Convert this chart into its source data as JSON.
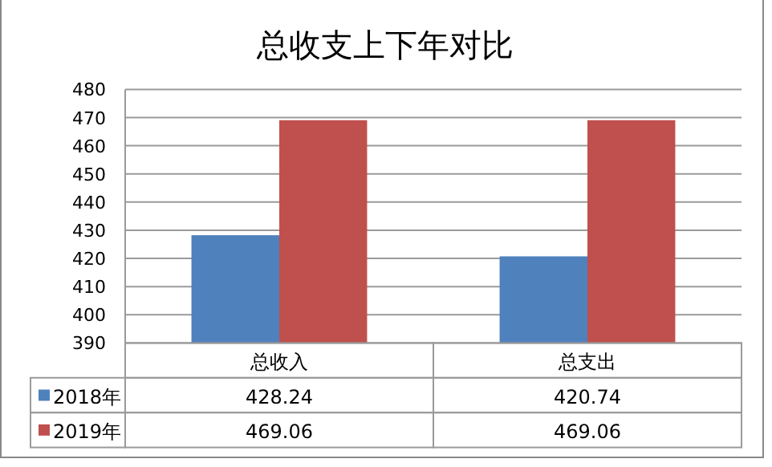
{
  "chart_data": {
    "type": "bar",
    "title": "总收支上下年对比",
    "categories": [
      "总收入",
      "总支出"
    ],
    "series": [
      {
        "name": "2018年",
        "color": "#4f81bd",
        "values": [
          428.24,
          420.74
        ]
      },
      {
        "name": "2019年",
        "color": "#c0504d",
        "values": [
          469.06,
          469.06
        ]
      }
    ],
    "ylim": [
      390,
      480
    ],
    "yticks": [
      390,
      400,
      410,
      420,
      430,
      440,
      450,
      460,
      470,
      480
    ],
    "grid": "y",
    "legend": "bottom left",
    "data_labels": true
  }
}
